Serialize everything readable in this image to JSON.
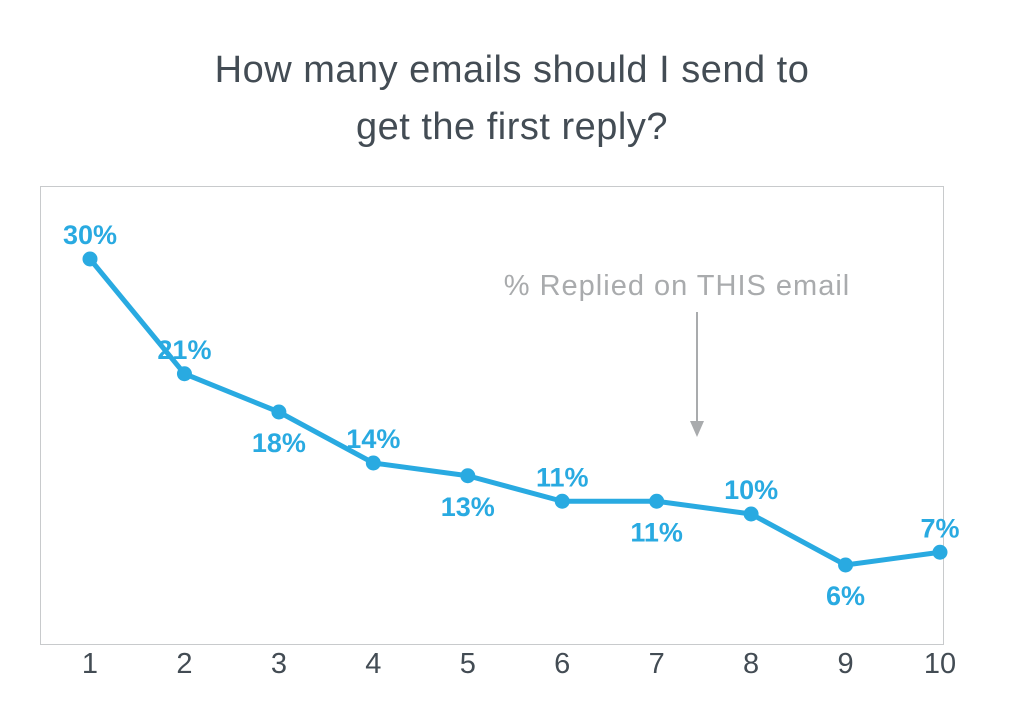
{
  "title": {
    "line1": "How many emails should I send to",
    "line2": "get the first reply?"
  },
  "chart_data": {
    "type": "line",
    "title": "How many emails should I send to get the first reply?",
    "categories": [
      "1",
      "2",
      "3",
      "4",
      "5",
      "6",
      "7",
      "8",
      "9",
      "10"
    ],
    "values": [
      30,
      21,
      18,
      14,
      13,
      11,
      11,
      10,
      6,
      7
    ],
    "point_labels": [
      "30%",
      "21%",
      "18%",
      "14%",
      "13%",
      "11%",
      "11%",
      "10%",
      "6%",
      "7%"
    ],
    "label_placement": [
      "above",
      "above",
      "below",
      "above",
      "below",
      "above",
      "below",
      "above",
      "below",
      "above"
    ],
    "annotation": "% Replied on THIS email",
    "xlabel": "",
    "ylabel": "",
    "ylim": [
      0,
      35
    ],
    "grid": false,
    "legend": null,
    "colors": {
      "line": "#29AAE1",
      "labels": "#29AAE1",
      "axis_text": "#434C54",
      "annotation": "#A9ABAD",
      "border": "#C8CACC"
    }
  }
}
